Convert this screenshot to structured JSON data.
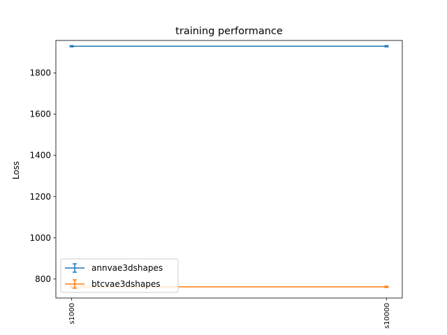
{
  "chart_data": {
    "type": "line",
    "title": "training performance",
    "xlabel": "",
    "ylabel": "Loss",
    "categories": [
      "s1000",
      "s10000"
    ],
    "ylim": [
      708,
      1958
    ],
    "yticks": [
      800,
      1000,
      1200,
      1400,
      1600,
      1800
    ],
    "grid": false,
    "legend_position": "lower-left",
    "error_bars": true,
    "series": [
      {
        "name": "annvae3dshapes",
        "values": [
          1930,
          1930
        ],
        "errors": [
          3,
          3
        ],
        "color": "#1f77b4"
      },
      {
        "name": "btcvae3dshapes",
        "values": [
          762,
          762
        ],
        "errors": [
          3,
          3
        ],
        "color": "#ff7f0e"
      }
    ]
  }
}
